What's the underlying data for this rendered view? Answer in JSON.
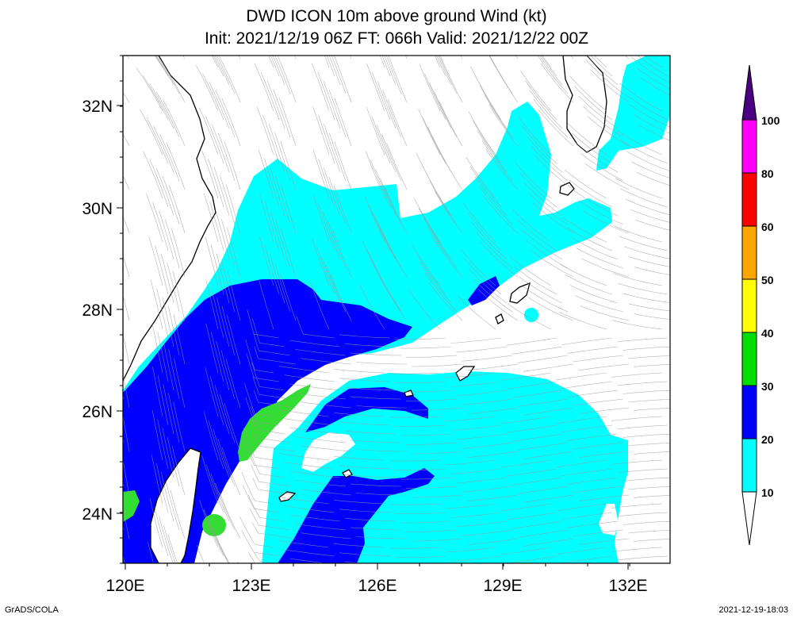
{
  "title_line1": "DWD ICON 10m above ground Wind (kt)",
  "title_line2": "Init: 2021/12/19 06Z  FT: 066h  Valid: 2021/12/22 00Z",
  "lat_labels": [
    "32N",
    "30N",
    "28N",
    "26N",
    "24N"
  ],
  "lon_labels": [
    "120E",
    "123E",
    "126E",
    "129E",
    "132E"
  ],
  "colorbar": {
    "labels": [
      "10",
      "20",
      "30",
      "40",
      "50",
      "60",
      "80",
      "100"
    ],
    "colors": [
      "#ffffff",
      "#00ffff",
      "#0000ff",
      "#00dd00",
      "#ffff00",
      "#ffa500",
      "#ff0000",
      "#ff00ff",
      "#4b0082"
    ]
  },
  "map_colors": {
    "calm": "#ffffff",
    "w10_20": "#00ffff",
    "w20_30": "#0000ff",
    "w30_40": "#33dd33",
    "coast": "#000000",
    "stream": "#999999"
  },
  "footer_left": "GrADS/COLA",
  "footer_right": "2021-12-19-18:03"
}
